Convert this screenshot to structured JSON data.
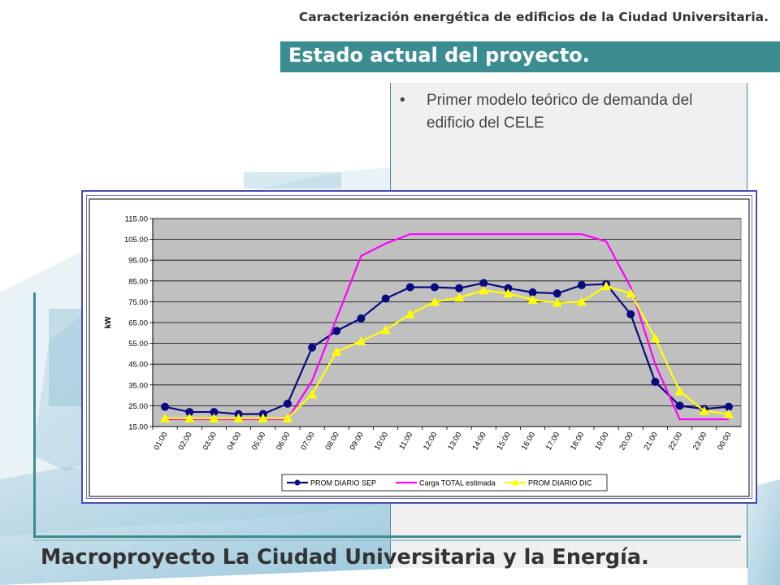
{
  "header": {
    "top_title": "Caracterización energética de edificios de la Ciudad Universitaria.",
    "section_title": "Estado actual del proyecto."
  },
  "content": {
    "bullet_marker": "•",
    "bullet_text": "Primer modelo teórico de demanda del edificio del CELE"
  },
  "footer": {
    "title": "Macroproyecto La Ciudad Universitaria y la Energía."
  },
  "colors": {
    "accent": "#3b8d92",
    "frame": "#4b4bb0",
    "plot_bg": "#c0c0c0",
    "series_sep": "#0a0a80",
    "series_total": "#ff00ff",
    "series_dic": "#ffff00"
  },
  "chart_data": {
    "type": "line",
    "title": "",
    "xlabel": "",
    "ylabel": "kW",
    "ylim": [
      15,
      115
    ],
    "yticks": [
      "15.00",
      "25.00",
      "35.00",
      "45.00",
      "55.00",
      "65.00",
      "75.00",
      "85.00",
      "95.00",
      "105.00",
      "115.00"
    ],
    "categories": [
      "01:00",
      "02:00",
      "03:00",
      "04:00",
      "05:00",
      "06:00",
      "07:00",
      "08:00",
      "09:00",
      "10:00",
      "11:00",
      "12:00",
      "13:00",
      "14:00",
      "15:00",
      "16:00",
      "17:00",
      "18:00",
      "19:00",
      "20:00",
      "21:00",
      "22:00",
      "23:00",
      "00:00"
    ],
    "grid": true,
    "legend_position": "bottom",
    "series": [
      {
        "name": "PROM DIARIO SEP",
        "marker": "circle",
        "color": "#0a0a80",
        "values": [
          24.5,
          22,
          22,
          21,
          21,
          26,
          53,
          61,
          67,
          76.5,
          82,
          82,
          81.5,
          84,
          81.5,
          79.5,
          79,
          83,
          83.5,
          69,
          36.5,
          25,
          23.5,
          24.5
        ]
      },
      {
        "name": "Carga TOTAL estimada",
        "marker": "none",
        "color": "#ff00ff",
        "values": [
          18.5,
          18.5,
          18.5,
          18.5,
          18.5,
          18.5,
          37,
          67,
          97,
          103,
          107.5,
          107.5,
          107.5,
          107.5,
          107.5,
          107.5,
          107.5,
          107.5,
          104,
          82,
          45,
          18.5,
          18.5,
          18.5
        ]
      },
      {
        "name": "PROM DIARIO DIC",
        "marker": "triangle",
        "color": "#ffff00",
        "values": [
          19,
          19,
          19,
          19,
          19,
          19,
          30.5,
          51,
          56,
          61.5,
          69,
          75,
          77,
          80.5,
          79,
          76,
          74.5,
          75,
          82.5,
          79,
          57.5,
          32,
          22.5,
          21
        ]
      }
    ]
  }
}
